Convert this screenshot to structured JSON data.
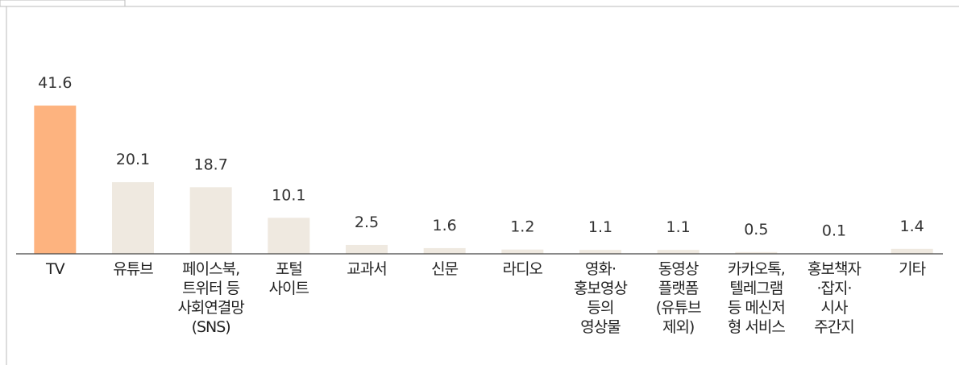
{
  "chart_data": {
    "type": "bar",
    "categories": [
      "TV",
      "유튜브",
      "페이스북,\n트위터 등\n사회연결망\n(SNS)",
      "포털\n사이트",
      "교과서",
      "신문",
      "라디오",
      "영화·\n홍보영상\n등의\n영상물",
      "동영상\n플랫폼\n(유튜브\n제외)",
      "카카오톡,\n텔레그램\n등 메신저\n형 서비스",
      "홍보책자\n·잡지·\n시사\n주간지",
      "기타"
    ],
    "values": [
      41.6,
      20.1,
      18.7,
      10.1,
      2.5,
      1.6,
      1.2,
      1.1,
      1.1,
      0.5,
      0.1,
      1.4
    ],
    "colors": [
      "#fdb37f",
      "#efe9e0",
      "#efe9e0",
      "#efe9e0",
      "#efe9e0",
      "#efe9e0",
      "#efe9e0",
      "#efe9e0",
      "#efe9e0",
      "#efe9e0",
      "#efe9e0",
      "#efe9e0"
    ],
    "ylim": [
      0,
      45
    ]
  }
}
